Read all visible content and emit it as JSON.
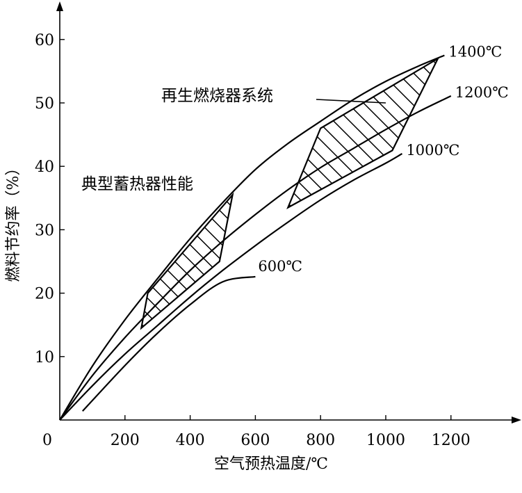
{
  "chart_data": {
    "type": "line",
    "title": "",
    "xlabel": "空气预热温度/℃",
    "ylabel": "燃料节约率（%）",
    "xlim": [
      0,
      1400
    ],
    "ylim": [
      0,
      65
    ],
    "x_ticks": [
      0,
      200,
      400,
      600,
      800,
      1000,
      1200
    ],
    "x_tick_labels": [
      "0",
      "200",
      "400",
      "600",
      "800",
      "1000",
      "1200"
    ],
    "y_ticks": [
      10,
      20,
      30,
      40,
      50,
      60
    ],
    "y_tick_labels": [
      "10",
      "20",
      "30",
      "40",
      "50",
      "60"
    ],
    "grid": false,
    "series": [
      {
        "name": "1400℃",
        "x": [
          0,
          100,
          200,
          300,
          400,
          500,
          600,
          700,
          800,
          900,
          1000,
          1100,
          1180
        ],
        "y": [
          0,
          8.5,
          15.8,
          22.3,
          28.6,
          34.3,
          39.5,
          43.6,
          47.1,
          50.5,
          53.4,
          55.8,
          57.5
        ]
      },
      {
        "name": "1200℃",
        "x": [
          0,
          100,
          200,
          300,
          400,
          500,
          600,
          700,
          800,
          900,
          1000,
          1100,
          1200
        ],
        "y": [
          0,
          7,
          13,
          18.4,
          23.6,
          28.2,
          32.4,
          36.3,
          39.8,
          42.8,
          45.8,
          48.6,
          51.1
        ]
      },
      {
        "name": "1000℃",
        "x": [
          0,
          100,
          200,
          300,
          400,
          500,
          600,
          700,
          800,
          900,
          1000,
          1050
        ],
        "y": [
          0,
          5.4,
          10.4,
          14.9,
          19.4,
          23.6,
          27.5,
          31.2,
          34.7,
          37.8,
          40.5,
          42
        ]
      },
      {
        "name": "600℃",
        "x": [
          70,
          200,
          300,
          400,
          500,
          600
        ],
        "y": [
          1.4,
          8.6,
          13.7,
          18.2,
          21.8,
          22.6
        ]
      }
    ],
    "regions": [
      {
        "label": "典型蓄热器性能",
        "x": [
          270,
          530,
          490,
          250
        ],
        "y": [
          20,
          35.5,
          25,
          14.5
        ]
      },
      {
        "label": "再生燃烧器系统",
        "x": [
          800,
          1160,
          1020,
          700
        ],
        "y": [
          46,
          57,
          42.5,
          33.5
        ]
      }
    ],
    "annotations": [
      {
        "text": "再生燃烧器系统",
        "points_to": [
          1000,
          50
        ]
      },
      {
        "text": "典型蓄热器性能",
        "points_to": null
      }
    ]
  }
}
